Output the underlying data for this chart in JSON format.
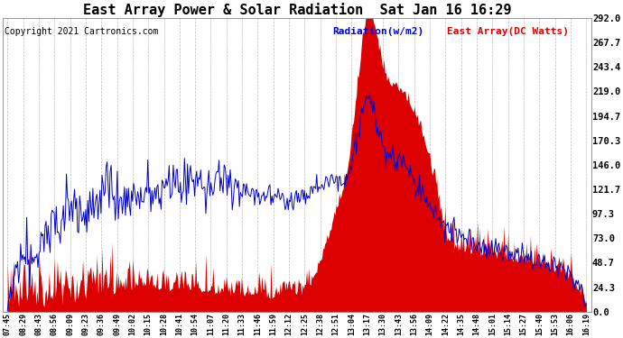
{
  "title": "East Array Power & Solar Radiation  Sat Jan 16 16:29",
  "copyright": "Copyright 2021 Cartronics.com",
  "legend_radiation": "Radiation(w/m2)",
  "legend_east": "East Array(DC Watts)",
  "ylabel_right_ticks": [
    0.0,
    24.3,
    48.7,
    73.0,
    97.3,
    121.7,
    146.0,
    170.3,
    194.7,
    219.0,
    243.4,
    267.7,
    292.0
  ],
  "ylabel_right_labels": [
    "0.0",
    "24.3",
    "48.7",
    "73.0",
    "97.3",
    "121.7",
    "146.0",
    "170.3",
    "194.7",
    "219.0",
    "243.4",
    "267.7",
    "292.0"
  ],
  "ymin": 0.0,
  "ymax": 292.0,
  "radiation_color": "#0000cc",
  "east_array_color": "#dd0000",
  "background_color": "#ffffff",
  "grid_color": "#bbbbbb",
  "title_fontsize": 11,
  "copyright_fontsize": 7,
  "legend_fontsize": 8,
  "xtick_labels": [
    "07:45",
    "08:29",
    "08:43",
    "08:56",
    "09:09",
    "09:23",
    "09:36",
    "09:49",
    "10:02",
    "10:15",
    "10:28",
    "10:41",
    "10:54",
    "11:07",
    "11:20",
    "11:33",
    "11:46",
    "11:59",
    "12:12",
    "12:25",
    "12:38",
    "12:51",
    "13:04",
    "13:17",
    "13:30",
    "13:43",
    "13:56",
    "14:09",
    "14:22",
    "14:35",
    "14:48",
    "15:01",
    "15:14",
    "15:27",
    "15:40",
    "15:53",
    "16:06",
    "16:19"
  ],
  "figwidth": 6.9,
  "figheight": 3.75,
  "dpi": 100
}
